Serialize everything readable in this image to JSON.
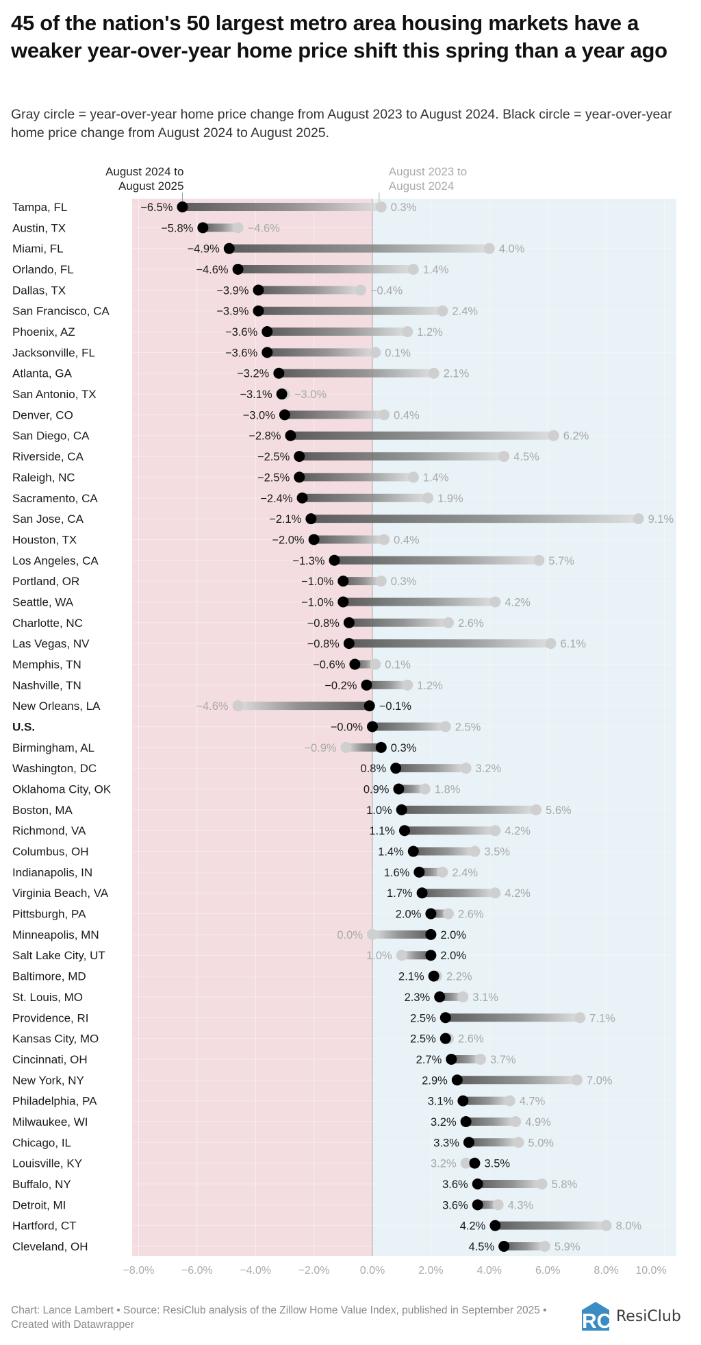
{
  "header": {
    "title": "45 of the nation's 50 largest metro area housing markets have a weaker year-over-year home price shift this spring than a year ago",
    "subtitle": "Gray circle = year-over-year home price change from August 2023 to August 2024. Black circle = year-over-year home price change from August 2024 to August 2025."
  },
  "footer": {
    "note": "Chart: Lance Lambert • Source: ResiClub analysis of the Zillow Home Value Index, published in September 2025 • Created with Datawrapper",
    "logo_text": "ResiClub",
    "logo_mark": "RC"
  },
  "colors": {
    "negative_bg": "#f3dde0",
    "positive_bg": "#e8f2f7",
    "current_dot": "#000000",
    "prior_dot": "#cfcfcf",
    "current_label": "#1a1a1a",
    "prior_label": "#a8a8a8",
    "logo_blue": "#3a8cc4"
  },
  "chart_data": {
    "type": "dumbbell",
    "title": "45 of the nation's 50 largest metro area housing markets have a weaker year-over-year home price shift this spring than a year ago",
    "xlabel": "",
    "ylabel": "",
    "xlim": [
      -8,
      10.5
    ],
    "grid": true,
    "x_ticks": [
      -8,
      -6,
      -4,
      -2,
      0,
      2,
      4,
      6,
      8,
      10
    ],
    "x_tick_labels": [
      "−8.0%",
      "−6.0%",
      "−4.0%",
      "−2.0%",
      "0.0%",
      "2.0%",
      "4.0%",
      "6.0%",
      "8.0%",
      "10.0%"
    ],
    "series_labels": {
      "current": "August 2024 to\nAugust 2025",
      "prior": "August 2023 to\nAugust 2024"
    },
    "series": [
      {
        "name": "August 2024 to August 2025",
        "key": "current",
        "marker": "black circle"
      },
      {
        "name": "August 2023 to August 2024",
        "key": "prior",
        "marker": "gray circle"
      }
    ],
    "rows": [
      {
        "name": "Tampa, FL",
        "current": -6.5,
        "prior": 0.3
      },
      {
        "name": "Austin, TX",
        "current": -5.8,
        "prior": -4.6
      },
      {
        "name": "Miami, FL",
        "current": -4.9,
        "prior": 4.0
      },
      {
        "name": "Orlando, FL",
        "current": -4.6,
        "prior": 1.4
      },
      {
        "name": "Dallas, TX",
        "current": -3.9,
        "prior": -0.4
      },
      {
        "name": "San Francisco, CA",
        "current": -3.9,
        "prior": 2.4
      },
      {
        "name": "Phoenix, AZ",
        "current": -3.6,
        "prior": 1.2
      },
      {
        "name": "Jacksonville, FL",
        "current": -3.6,
        "prior": 0.1
      },
      {
        "name": "Atlanta, GA",
        "current": -3.2,
        "prior": 2.1
      },
      {
        "name": "San Antonio, TX",
        "current": -3.1,
        "prior": -3.0
      },
      {
        "name": "Denver, CO",
        "current": -3.0,
        "prior": 0.4
      },
      {
        "name": "San Diego, CA",
        "current": -2.8,
        "prior": 6.2
      },
      {
        "name": "Riverside, CA",
        "current": -2.5,
        "prior": 4.5
      },
      {
        "name": "Raleigh, NC",
        "current": -2.5,
        "prior": 1.4
      },
      {
        "name": "Sacramento, CA",
        "current": -2.4,
        "prior": 1.9
      },
      {
        "name": "San Jose, CA",
        "current": -2.1,
        "prior": 9.1
      },
      {
        "name": "Houston, TX",
        "current": -2.0,
        "prior": 0.4
      },
      {
        "name": "Los Angeles, CA",
        "current": -1.3,
        "prior": 5.7
      },
      {
        "name": "Portland, OR",
        "current": -1.0,
        "prior": 0.3
      },
      {
        "name": "Seattle, WA",
        "current": -1.0,
        "prior": 4.2
      },
      {
        "name": "Charlotte, NC",
        "current": -0.8,
        "prior": 2.6
      },
      {
        "name": "Las Vegas, NV",
        "current": -0.8,
        "prior": 6.1
      },
      {
        "name": "Memphis, TN",
        "current": -0.6,
        "prior": 0.1
      },
      {
        "name": "Nashville, TN",
        "current": -0.2,
        "prior": 1.2
      },
      {
        "name": "New Orleans, LA",
        "current": -0.1,
        "prior": -4.6
      },
      {
        "name": "U.S.",
        "current": -0.0,
        "prior": 2.5,
        "bold": true
      },
      {
        "name": "Birmingham, AL",
        "current": 0.3,
        "prior": -0.9
      },
      {
        "name": "Washington, DC",
        "current": 0.8,
        "prior": 3.2
      },
      {
        "name": "Oklahoma City, OK",
        "current": 0.9,
        "prior": 1.8
      },
      {
        "name": "Boston, MA",
        "current": 1.0,
        "prior": 5.6
      },
      {
        "name": "Richmond, VA",
        "current": 1.1,
        "prior": 4.2
      },
      {
        "name": "Columbus, OH",
        "current": 1.4,
        "prior": 3.5
      },
      {
        "name": "Indianapolis, IN",
        "current": 1.6,
        "prior": 2.4
      },
      {
        "name": "Virginia Beach, VA",
        "current": 1.7,
        "prior": 4.2
      },
      {
        "name": "Pittsburgh, PA",
        "current": 2.0,
        "prior": 2.6
      },
      {
        "name": "Minneapolis, MN",
        "current": 2.0,
        "prior": 0.0
      },
      {
        "name": "Salt Lake City, UT",
        "current": 2.0,
        "prior": 1.0
      },
      {
        "name": "Baltimore, MD",
        "current": 2.1,
        "prior": 2.2
      },
      {
        "name": "St. Louis, MO",
        "current": 2.3,
        "prior": 3.1
      },
      {
        "name": "Providence, RI",
        "current": 2.5,
        "prior": 7.1
      },
      {
        "name": "Kansas City, MO",
        "current": 2.5,
        "prior": 2.6
      },
      {
        "name": "Cincinnati, OH",
        "current": 2.7,
        "prior": 3.7
      },
      {
        "name": "New York, NY",
        "current": 2.9,
        "prior": 7.0
      },
      {
        "name": "Philadelphia, PA",
        "current": 3.1,
        "prior": 4.7
      },
      {
        "name": "Milwaukee, WI",
        "current": 3.2,
        "prior": 4.9
      },
      {
        "name": "Chicago, IL",
        "current": 3.3,
        "prior": 5.0
      },
      {
        "name": "Louisville, KY",
        "current": 3.5,
        "prior": 3.2
      },
      {
        "name": "Buffalo, NY",
        "current": 3.6,
        "prior": 5.8
      },
      {
        "name": "Detroit, MI",
        "current": 3.6,
        "prior": 4.3
      },
      {
        "name": "Hartford, CT",
        "current": 4.2,
        "prior": 8.0
      },
      {
        "name": "Cleveland, OH",
        "current": 4.5,
        "prior": 5.9
      }
    ]
  }
}
